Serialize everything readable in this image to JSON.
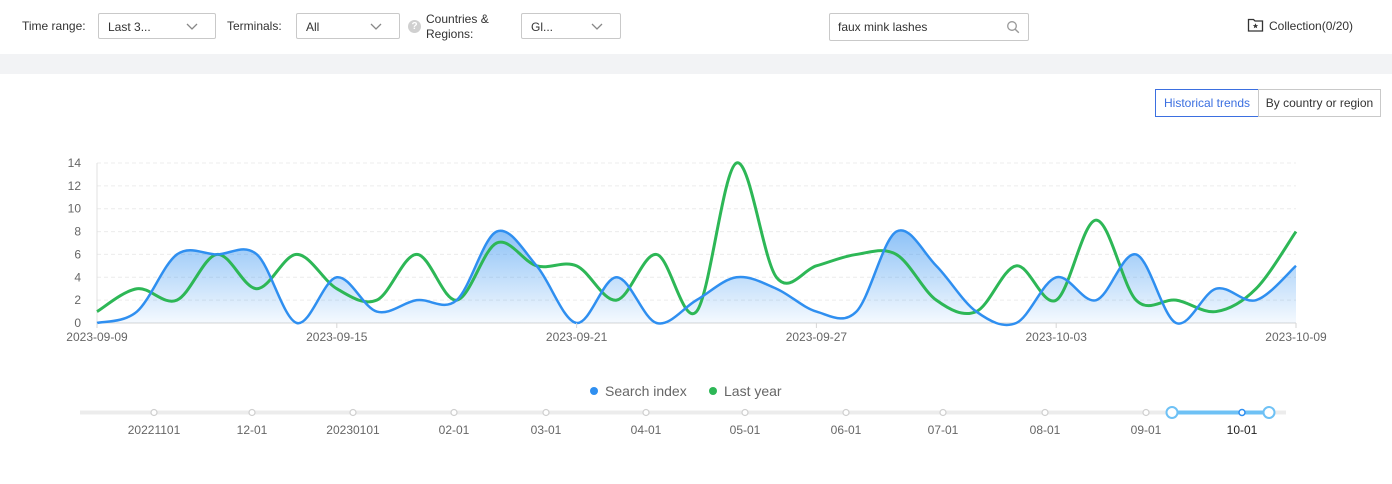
{
  "filters": {
    "time_range_label": "Time range:",
    "time_range_value": "Last 3...",
    "terminals_label": "Terminals:",
    "terminals_value": "All",
    "countries_label_line1": "Countries &",
    "countries_label_line2": "Regions:",
    "countries_value": "Gl...",
    "help_glyph": "?"
  },
  "search": {
    "value": "faux mink lashes"
  },
  "collection": {
    "label": "Collection(0/20)"
  },
  "view_toggle": {
    "historical": "Historical trends",
    "by_country": "By country or region"
  },
  "colors": {
    "search_index": "#2f8ff0",
    "last_year": "#2db756",
    "accent": "#3b6fe0"
  },
  "chart_data": {
    "type": "line",
    "x_tick_labels": [
      "2023-09-09",
      "2023-09-15",
      "2023-09-21",
      "2023-09-27",
      "2023-10-03",
      "2023-10-09"
    ],
    "ylim": [
      0,
      14
    ],
    "y_ticks": [
      0,
      2,
      4,
      6,
      8,
      10,
      12,
      14
    ],
    "x": [
      "09-09",
      "09-10",
      "09-11",
      "09-12",
      "09-13",
      "09-14",
      "09-15",
      "09-16",
      "09-17",
      "09-18",
      "09-19",
      "09-20",
      "09-21",
      "09-22",
      "09-23",
      "09-24",
      "09-25",
      "09-26",
      "09-27",
      "09-28",
      "09-29",
      "09-30",
      "10-01",
      "10-02",
      "10-03",
      "10-04",
      "10-05",
      "10-06",
      "10-07",
      "10-08",
      "10-09"
    ],
    "series": [
      {
        "name": "Search index",
        "values": [
          0,
          1,
          6,
          6,
          6,
          0,
          4,
          1,
          2,
          2,
          8,
          5,
          0,
          4,
          0,
          2,
          4,
          3,
          1,
          1,
          8,
          5,
          1,
          0,
          4,
          2,
          6,
          0,
          3,
          2,
          5
        ]
      },
      {
        "name": "Last year",
        "values": [
          1,
          3,
          2,
          6,
          3,
          6,
          3,
          2,
          6,
          2,
          7,
          5,
          5,
          2,
          6,
          1,
          14,
          4,
          5,
          6,
          6,
          2,
          1,
          5,
          2,
          9,
          2,
          2,
          1,
          3,
          8
        ]
      }
    ],
    "grid": true
  },
  "timeline": {
    "labels": [
      "20221101",
      "12-01",
      "20230101",
      "02-01",
      "03-01",
      "04-01",
      "05-01",
      "06-01",
      "07-01",
      "08-01",
      "09-01",
      "10-01"
    ]
  }
}
